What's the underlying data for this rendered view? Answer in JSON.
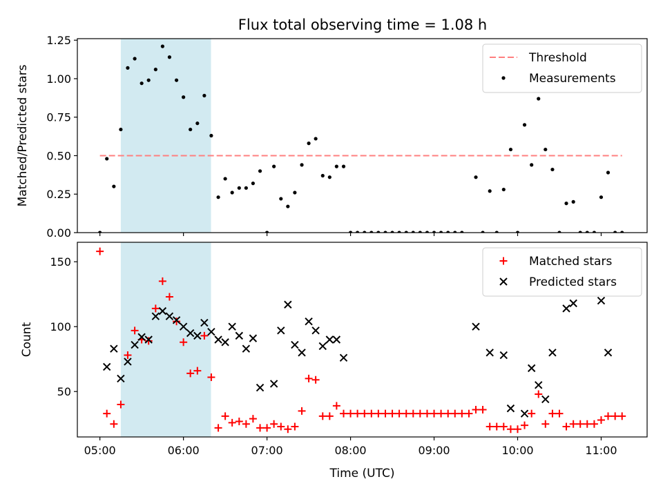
{
  "figure": {
    "title": "Flux total observing time = 1.08 h"
  },
  "colors": {
    "threshold": "#ff7f7f",
    "measurements": "#000000",
    "matched": "#ff0000",
    "predicted": "#000000",
    "highlight": "#add8e6"
  },
  "chart_data": [
    {
      "type": "scatter",
      "xlabel": "",
      "ylabel": "Matched/Predicted stars",
      "xlim": [
        4.73,
        11.55
      ],
      "ylim": [
        0.0,
        1.26
      ],
      "yticks": [
        0.0,
        0.25,
        0.5,
        0.75,
        1.0,
        1.25
      ],
      "ytick_labels": [
        "0.00",
        "0.25",
        "0.50",
        "0.75",
        "1.00",
        "1.25"
      ],
      "xticks": [
        5,
        6,
        7,
        8,
        9,
        10,
        11
      ],
      "xtick_labels_visible": false,
      "highlight_span": [
        5.25,
        6.33
      ],
      "threshold": {
        "name": "Threshold",
        "y": 0.5,
        "x_range": [
          5.0,
          11.25
        ]
      },
      "legend": {
        "placement": "upper right",
        "entries": [
          "Threshold",
          "Measurements"
        ]
      },
      "series": [
        {
          "name": "Measurements",
          "marker": "dot",
          "points": [
            [
              5.0,
              0.0
            ],
            [
              5.083,
              0.48
            ],
            [
              5.167,
              0.3
            ],
            [
              5.25,
              0.67
            ],
            [
              5.333,
              1.07
            ],
            [
              5.417,
              1.13
            ],
            [
              5.5,
              0.97
            ],
            [
              5.583,
              0.99
            ],
            [
              5.667,
              1.06
            ],
            [
              5.75,
              1.21
            ],
            [
              5.833,
              1.14
            ],
            [
              5.917,
              0.99
            ],
            [
              6.0,
              0.88
            ],
            [
              6.083,
              0.67
            ],
            [
              6.167,
              0.71
            ],
            [
              6.25,
              0.89
            ],
            [
              6.333,
              0.63
            ],
            [
              6.417,
              0.23
            ],
            [
              6.5,
              0.35
            ],
            [
              6.583,
              0.26
            ],
            [
              6.667,
              0.29
            ],
            [
              6.75,
              0.29
            ],
            [
              6.833,
              0.32
            ],
            [
              6.917,
              0.4
            ],
            [
              7.0,
              0.0
            ],
            [
              7.083,
              0.43
            ],
            [
              7.167,
              0.22
            ],
            [
              7.25,
              0.17
            ],
            [
              7.333,
              0.26
            ],
            [
              7.417,
              0.44
            ],
            [
              7.5,
              0.58
            ],
            [
              7.583,
              0.61
            ],
            [
              7.667,
              0.37
            ],
            [
              7.75,
              0.36
            ],
            [
              7.833,
              0.43
            ],
            [
              7.917,
              0.43
            ],
            [
              8.0,
              0.0
            ],
            [
              8.083,
              0.0
            ],
            [
              8.167,
              0.0
            ],
            [
              8.25,
              0.0
            ],
            [
              8.333,
              0.0
            ],
            [
              8.417,
              0.0
            ],
            [
              8.5,
              0.0
            ],
            [
              8.583,
              0.0
            ],
            [
              8.667,
              0.0
            ],
            [
              8.75,
              0.0
            ],
            [
              8.833,
              0.0
            ],
            [
              8.917,
              0.0
            ],
            [
              9.0,
              0.0
            ],
            [
              9.083,
              0.0
            ],
            [
              9.167,
              0.0
            ],
            [
              9.25,
              0.0
            ],
            [
              9.333,
              0.0
            ],
            [
              9.5,
              0.36
            ],
            [
              9.583,
              0.0
            ],
            [
              9.667,
              0.27
            ],
            [
              9.75,
              0.0
            ],
            [
              9.833,
              0.28
            ],
            [
              9.917,
              0.54
            ],
            [
              10.0,
              0.0
            ],
            [
              10.083,
              0.7
            ],
            [
              10.167,
              0.44
            ],
            [
              10.25,
              0.87
            ],
            [
              10.333,
              0.54
            ],
            [
              10.417,
              0.41
            ],
            [
              10.5,
              0.0
            ],
            [
              10.583,
              0.19
            ],
            [
              10.667,
              0.2
            ],
            [
              10.75,
              0.0
            ],
            [
              10.833,
              0.0
            ],
            [
              10.917,
              0.0
            ],
            [
              11.0,
              0.23
            ],
            [
              11.083,
              0.39
            ],
            [
              11.167,
              0.0
            ],
            [
              11.25,
              0.0
            ]
          ]
        }
      ]
    },
    {
      "type": "scatter",
      "xlabel": "Time (UTC)",
      "ylabel": "Count",
      "xlim": [
        4.73,
        11.55
      ],
      "ylim": [
        15,
        165
      ],
      "yticks": [
        50,
        100,
        150
      ],
      "ytick_labels": [
        "50",
        "100",
        "150"
      ],
      "xticks": [
        5,
        6,
        7,
        8,
        9,
        10,
        11
      ],
      "xtick_labels": [
        "05:00",
        "06:00",
        "07:00",
        "08:00",
        "09:00",
        "10:00",
        "11:00"
      ],
      "highlight_span": [
        5.25,
        6.33
      ],
      "legend": {
        "placement": "upper right",
        "entries": [
          "Matched stars",
          "Predicted stars"
        ]
      },
      "series": [
        {
          "name": "Matched stars",
          "marker": "plus",
          "points": [
            [
              5.0,
              158
            ],
            [
              5.083,
              33
            ],
            [
              5.167,
              25
            ],
            [
              5.25,
              40
            ],
            [
              5.333,
              78
            ],
            [
              5.417,
              97
            ],
            [
              5.5,
              90
            ],
            [
              5.583,
              89
            ],
            [
              5.667,
              114
            ],
            [
              5.75,
              135
            ],
            [
              5.833,
              123
            ],
            [
              5.917,
              104
            ],
            [
              6.0,
              88
            ],
            [
              6.083,
              64
            ],
            [
              6.167,
              66
            ],
            [
              6.25,
              93
            ],
            [
              6.333,
              61
            ],
            [
              6.417,
              22
            ],
            [
              6.5,
              31
            ],
            [
              6.583,
              26
            ],
            [
              6.667,
              27
            ],
            [
              6.75,
              25
            ],
            [
              6.833,
              29
            ],
            [
              6.917,
              22
            ],
            [
              7.0,
              22
            ],
            [
              7.083,
              25
            ],
            [
              7.167,
              23
            ],
            [
              7.25,
              21
            ],
            [
              7.333,
              23
            ],
            [
              7.417,
              35
            ],
            [
              7.5,
              60
            ],
            [
              7.583,
              59
            ],
            [
              7.667,
              31
            ],
            [
              7.75,
              31
            ],
            [
              7.833,
              39
            ],
            [
              7.917,
              33
            ],
            [
              8.0,
              33
            ],
            [
              8.083,
              33
            ],
            [
              8.167,
              33
            ],
            [
              8.25,
              33
            ],
            [
              8.333,
              33
            ],
            [
              8.417,
              33
            ],
            [
              8.5,
              33
            ],
            [
              8.583,
              33
            ],
            [
              8.667,
              33
            ],
            [
              8.75,
              33
            ],
            [
              8.833,
              33
            ],
            [
              8.917,
              33
            ],
            [
              9.0,
              33
            ],
            [
              9.083,
              33
            ],
            [
              9.167,
              33
            ],
            [
              9.25,
              33
            ],
            [
              9.333,
              33
            ],
            [
              9.417,
              33
            ],
            [
              9.5,
              36
            ],
            [
              9.583,
              36
            ],
            [
              9.667,
              23
            ],
            [
              9.75,
              23
            ],
            [
              9.833,
              23
            ],
            [
              9.917,
              21
            ],
            [
              10.0,
              21
            ],
            [
              10.083,
              24
            ],
            [
              10.167,
              33
            ],
            [
              10.25,
              48
            ],
            [
              10.333,
              25
            ],
            [
              10.417,
              33
            ],
            [
              10.5,
              33
            ],
            [
              10.583,
              23
            ],
            [
              10.667,
              25
            ],
            [
              10.75,
              25
            ],
            [
              10.833,
              25
            ],
            [
              10.917,
              25
            ],
            [
              11.0,
              28
            ],
            [
              11.083,
              31
            ],
            [
              11.167,
              31
            ],
            [
              11.25,
              31
            ]
          ]
        },
        {
          "name": "Predicted stars",
          "marker": "x",
          "points": [
            [
              5.083,
              69
            ],
            [
              5.167,
              83
            ],
            [
              5.25,
              60
            ],
            [
              5.333,
              73
            ],
            [
              5.417,
              86
            ],
            [
              5.5,
              92
            ],
            [
              5.583,
              90
            ],
            [
              5.667,
              108
            ],
            [
              5.75,
              112
            ],
            [
              5.833,
              108
            ],
            [
              5.917,
              105
            ],
            [
              6.0,
              100
            ],
            [
              6.083,
              95
            ],
            [
              6.167,
              93
            ],
            [
              6.25,
              103
            ],
            [
              6.333,
              96
            ],
            [
              6.417,
              90
            ],
            [
              6.5,
              88
            ],
            [
              6.583,
              100
            ],
            [
              6.667,
              93
            ],
            [
              6.75,
              83
            ],
            [
              6.833,
              91
            ],
            [
              6.917,
              53
            ],
            [
              7.083,
              56
            ],
            [
              7.167,
              97
            ],
            [
              7.25,
              117
            ],
            [
              7.333,
              86
            ],
            [
              7.417,
              80
            ],
            [
              7.5,
              104
            ],
            [
              7.583,
              97
            ],
            [
              7.667,
              85
            ],
            [
              7.75,
              90
            ],
            [
              7.833,
              90
            ],
            [
              7.917,
              76
            ],
            [
              9.5,
              100
            ],
            [
              9.667,
              80
            ],
            [
              9.833,
              78
            ],
            [
              9.917,
              37
            ],
            [
              10.083,
              33
            ],
            [
              10.167,
              68
            ],
            [
              10.25,
              55
            ],
            [
              10.333,
              44
            ],
            [
              10.417,
              80
            ],
            [
              10.583,
              114
            ],
            [
              10.667,
              118
            ],
            [
              11.0,
              120
            ],
            [
              11.083,
              80
            ]
          ]
        }
      ]
    }
  ]
}
